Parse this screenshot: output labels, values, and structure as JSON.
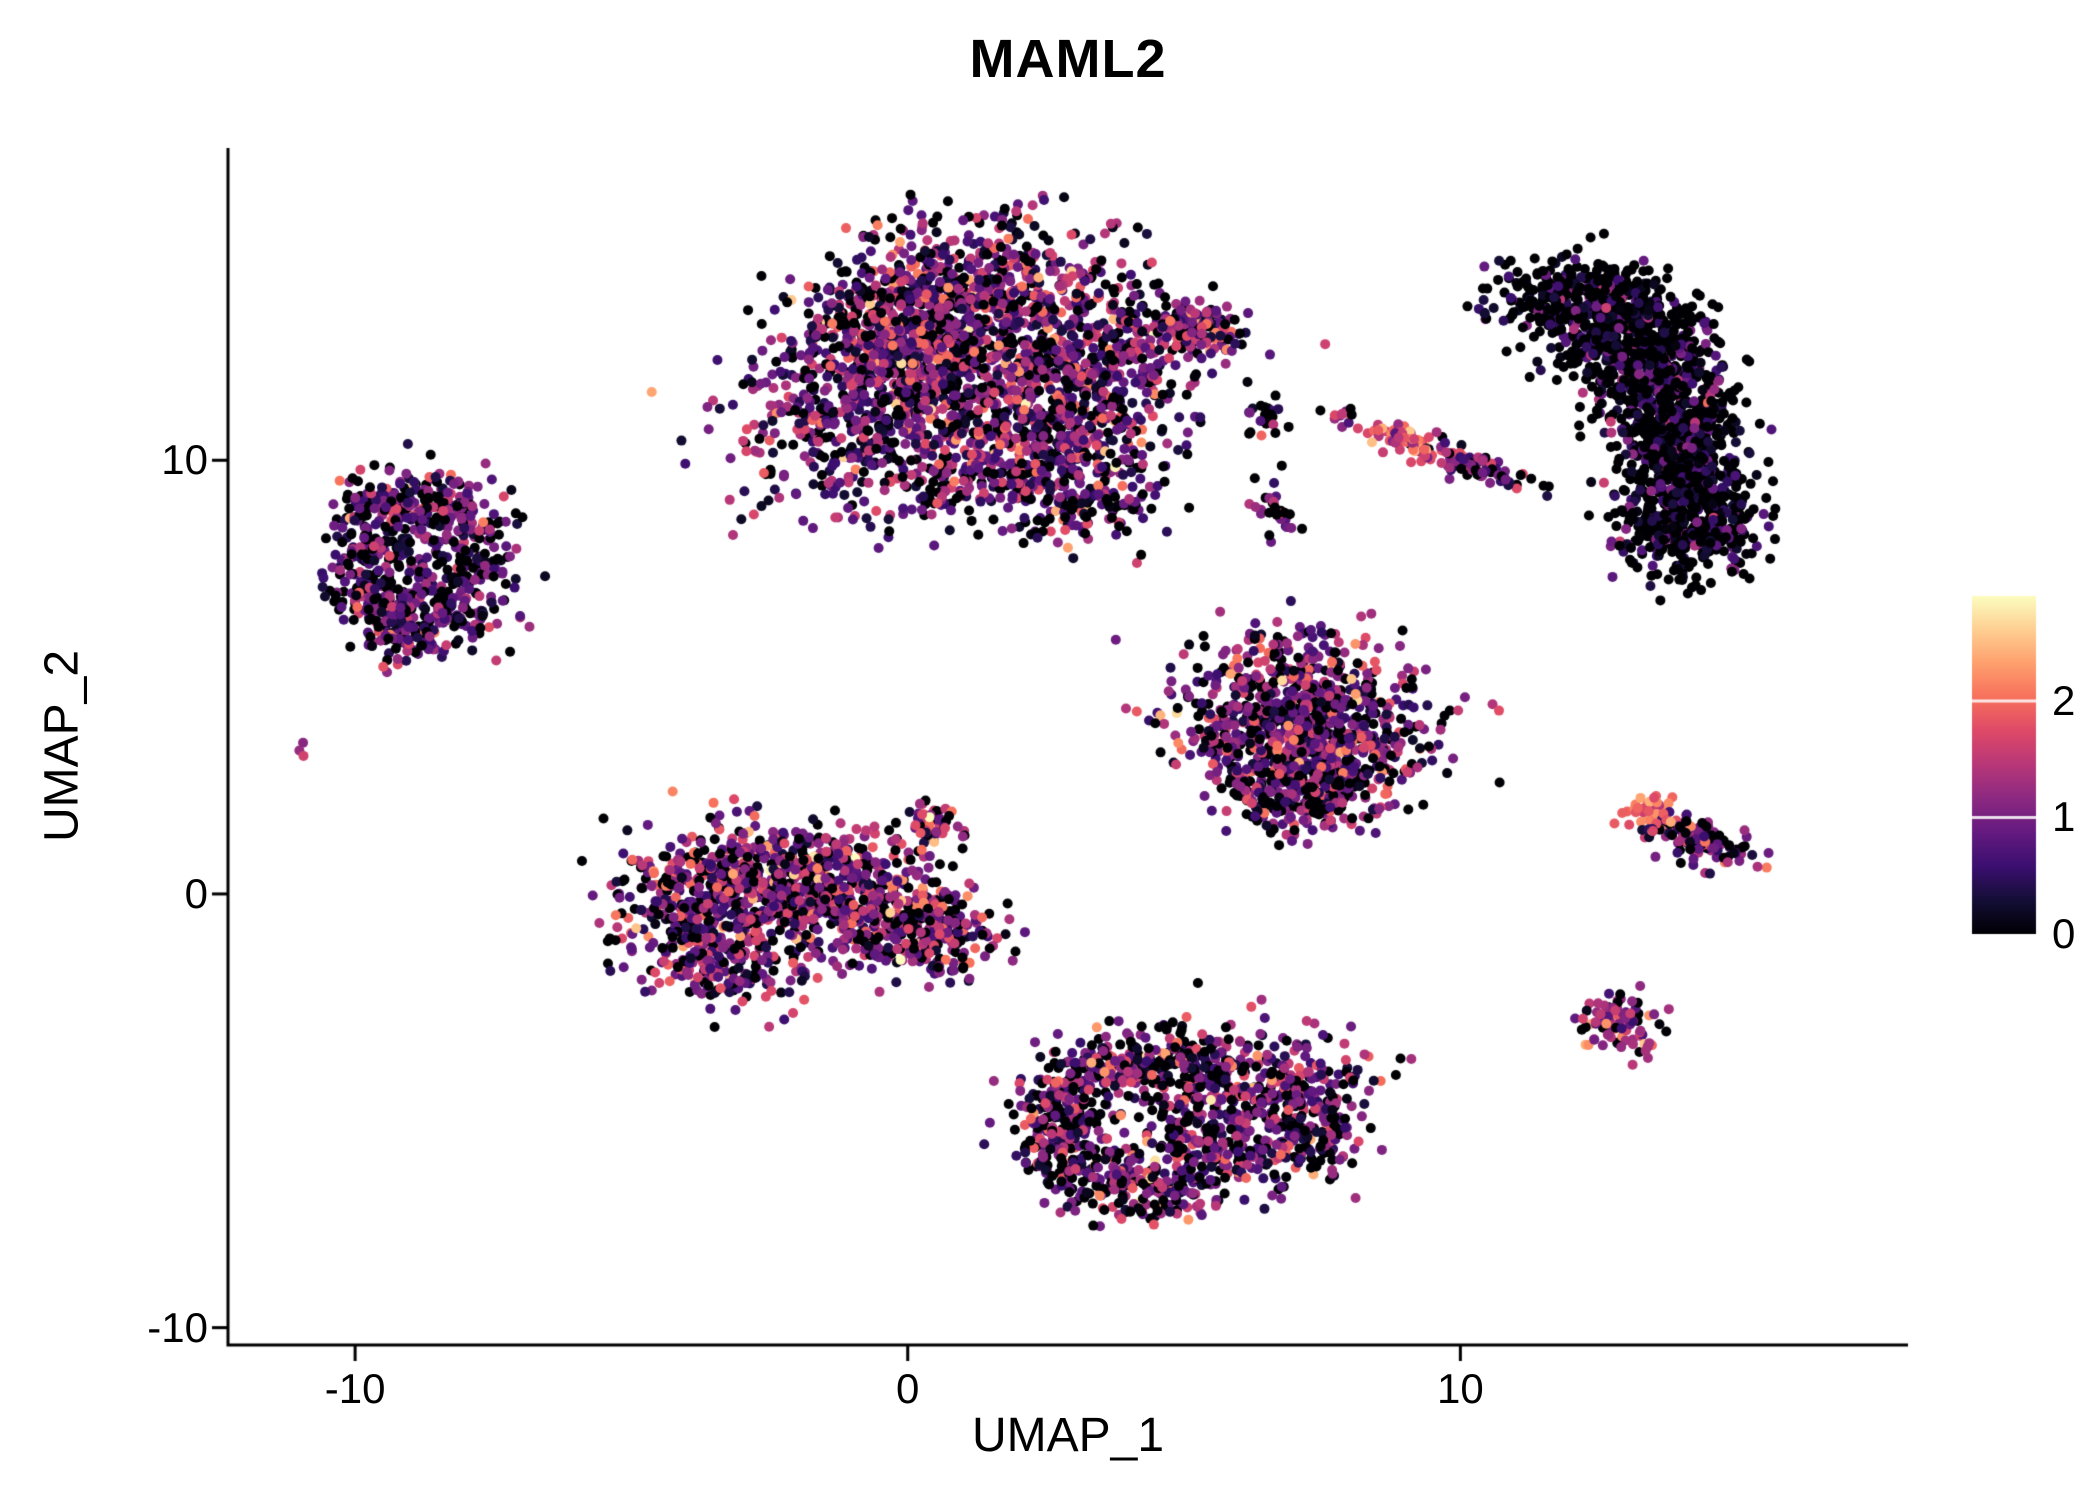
{
  "page": {
    "background": "#ffffff"
  },
  "chart_data": {
    "type": "scatter",
    "title": "MAML2",
    "xlabel": "UMAP_1",
    "ylabel": "UMAP_2",
    "xlim": [
      -12.3,
      18.1
    ],
    "ylim": [
      -10.4,
      17.2
    ],
    "x_ticks": [
      -10,
      0,
      10
    ],
    "y_ticks": [
      -10,
      0,
      10
    ],
    "grid": false,
    "background": "#ffffff",
    "axis_color": "#000000",
    "point_radius_px": 5,
    "seed": 42,
    "color_scale": {
      "name": "magma",
      "min": 0,
      "max": 2.9,
      "legend_position": "right",
      "legend_ticks": [
        0,
        1,
        2
      ],
      "anchors": [
        {
          "t": 0.0,
          "color": "#000004"
        },
        {
          "t": 0.1,
          "color": "#140e36"
        },
        {
          "t": 0.2,
          "color": "#3b0f70"
        },
        {
          "t": 0.3,
          "color": "#641a80"
        },
        {
          "t": 0.4,
          "color": "#8c2981"
        },
        {
          "t": 0.5,
          "color": "#b73779"
        },
        {
          "t": 0.6,
          "color": "#de4968"
        },
        {
          "t": 0.7,
          "color": "#f7705c"
        },
        {
          "t": 0.8,
          "color": "#fe9f6d"
        },
        {
          "t": 0.9,
          "color": "#fecf92"
        },
        {
          "t": 1.0,
          "color": "#fcfdbf"
        }
      ]
    },
    "clusters": [
      {
        "name": "top-center-large",
        "n": 2800,
        "expression": {
          "p_zero": 0.22,
          "mean": 1.0,
          "sd": 0.65
        },
        "blobs": [
          {
            "x": 0.9,
            "y": 12.0,
            "sx": 1.5,
            "sy": 1.4,
            "w": 0.28
          },
          {
            "x": -1.0,
            "y": 11.2,
            "sx": 1.0,
            "sy": 1.2,
            "w": 0.13
          },
          {
            "x": 1.6,
            "y": 14.0,
            "sx": 1.3,
            "sy": 0.85,
            "w": 0.15
          },
          {
            "x": 0.0,
            "y": 13.0,
            "sx": 0.8,
            "sy": 0.8,
            "w": 0.1
          },
          {
            "x": 2.8,
            "y": 10.6,
            "sx": 1.1,
            "sy": 0.9,
            "w": 0.12
          },
          {
            "x": 3.6,
            "y": 12.3,
            "sx": 0.8,
            "sy": 0.8,
            "w": 0.09
          },
          {
            "x": 5.2,
            "y": 13.0,
            "sx": 0.55,
            "sy": 0.28,
            "w": 0.05,
            "rot": -15
          },
          {
            "x": 3.2,
            "y": 8.9,
            "sx": 0.7,
            "sy": 0.5,
            "w": 0.04
          },
          {
            "x": 1.0,
            "y": 9.6,
            "sx": 0.8,
            "sy": 0.5,
            "w": 0.04
          }
        ]
      },
      {
        "name": "left-ring",
        "n": 780,
        "expression": {
          "p_zero": 0.32,
          "mean": 0.9,
          "sd": 0.55
        },
        "blobs": [
          {
            "x": -9.7,
            "y": 8.4,
            "sx": 0.45,
            "sy": 0.5,
            "w": 0.14
          },
          {
            "x": -8.2,
            "y": 8.6,
            "sx": 0.5,
            "sy": 0.45,
            "w": 0.14
          },
          {
            "x": -9.8,
            "y": 7.2,
            "sx": 0.4,
            "sy": 0.45,
            "w": 0.12
          },
          {
            "x": -8.0,
            "y": 7.4,
            "sx": 0.45,
            "sy": 0.5,
            "w": 0.13
          },
          {
            "x": -8.9,
            "y": 9.1,
            "sx": 0.55,
            "sy": 0.38,
            "w": 0.14
          },
          {
            "x": -8.8,
            "y": 6.4,
            "sx": 0.55,
            "sy": 0.45,
            "w": 0.14
          },
          {
            "x": -9.4,
            "y": 6.7,
            "sx": 0.4,
            "sy": 0.4,
            "w": 0.09
          },
          {
            "x": -9.2,
            "y": 5.9,
            "sx": 0.4,
            "sy": 0.33,
            "w": 0.06
          },
          {
            "x": -8.1,
            "y": 6.6,
            "sx": 0.4,
            "sy": 0.4,
            "w": 0.04
          }
        ]
      },
      {
        "name": "isolated-dot-left",
        "n": 3,
        "expression": {
          "p_zero": 0.0,
          "mean": 1.3,
          "sd": 0.3
        },
        "blobs": [
          {
            "x": -10.9,
            "y": 3.4,
            "sx": 0.08,
            "sy": 0.08,
            "w": 1
          }
        ]
      },
      {
        "name": "right-crescent-dark",
        "n": 1900,
        "expression": {
          "p_zero": 0.62,
          "mean": 0.5,
          "sd": 0.5
        },
        "blobs": [
          {
            "x": 12.0,
            "y": 13.8,
            "sx": 0.75,
            "sy": 0.45,
            "w": 0.14
          },
          {
            "x": 12.9,
            "y": 13.0,
            "sx": 0.7,
            "sy": 0.6,
            "w": 0.18
          },
          {
            "x": 13.6,
            "y": 12.0,
            "sx": 0.6,
            "sy": 0.8,
            "w": 0.18
          },
          {
            "x": 13.9,
            "y": 10.7,
            "sx": 0.55,
            "sy": 0.8,
            "w": 0.18
          },
          {
            "x": 14.0,
            "y": 9.4,
            "sx": 0.6,
            "sy": 0.8,
            "w": 0.17
          },
          {
            "x": 14.1,
            "y": 8.3,
            "sx": 0.6,
            "sy": 0.55,
            "w": 0.15
          }
        ]
      },
      {
        "name": "small-pair-dark-mid",
        "n": 22,
        "expression": {
          "p_zero": 0.5,
          "mean": 0.7,
          "sd": 0.5
        },
        "blobs": [
          {
            "x": 6.5,
            "y": 11.0,
            "sx": 0.22,
            "sy": 0.22,
            "w": 1
          }
        ]
      },
      {
        "name": "tiny-colored-pair-mid",
        "n": 12,
        "expression": {
          "p_zero": 0.2,
          "mean": 1.3,
          "sd": 0.4
        },
        "blobs": [
          {
            "x": 7.8,
            "y": 11.05,
            "sx": 0.15,
            "sy": 0.12,
            "w": 1
          }
        ]
      },
      {
        "name": "mid-streak-bright-tip",
        "n": 60,
        "expression": {
          "p_zero": 0.05,
          "mean": 1.8,
          "sd": 0.4
        },
        "blobs": [
          {
            "x": 9.0,
            "y": 10.45,
            "sx": 0.35,
            "sy": 0.16,
            "w": 1,
            "rot": -20
          }
        ]
      },
      {
        "name": "mid-streak-tail",
        "n": 85,
        "expression": {
          "p_zero": 0.25,
          "mean": 0.9,
          "sd": 0.5
        },
        "blobs": [
          {
            "x": 10.3,
            "y": 9.85,
            "sx": 0.55,
            "sy": 0.15,
            "w": 1,
            "rot": -24
          }
        ]
      },
      {
        "name": "small-clump-below-streak",
        "n": 30,
        "expression": {
          "p_zero": 0.45,
          "mean": 0.8,
          "sd": 0.5
        },
        "blobs": [
          {
            "x": 6.6,
            "y": 8.9,
            "sx": 0.3,
            "sy": 0.3,
            "w": 1
          }
        ]
      },
      {
        "name": "middle-right-triangle",
        "n": 1150,
        "expression": {
          "p_zero": 0.28,
          "mean": 1.0,
          "sd": 0.6
        },
        "blobs": [
          {
            "x": 7.1,
            "y": 4.8,
            "sx": 1.0,
            "sy": 0.7,
            "w": 0.3
          },
          {
            "x": 6.4,
            "y": 3.6,
            "sx": 0.8,
            "sy": 0.7,
            "w": 0.25
          },
          {
            "x": 7.9,
            "y": 3.5,
            "sx": 0.8,
            "sy": 0.65,
            "w": 0.25
          },
          {
            "x": 7.2,
            "y": 2.4,
            "sx": 0.7,
            "sy": 0.45,
            "w": 0.2
          }
        ]
      },
      {
        "name": "center-left-blob",
        "n": 1450,
        "expression": {
          "p_zero": 0.25,
          "mean": 1.15,
          "sd": 0.6
        },
        "blobs": [
          {
            "x": -3.9,
            "y": -0.1,
            "sx": 0.75,
            "sy": 0.8,
            "w": 0.2
          },
          {
            "x": -2.6,
            "y": 0.3,
            "sx": 0.8,
            "sy": 0.75,
            "w": 0.22
          },
          {
            "x": -1.3,
            "y": 0.0,
            "sx": 0.8,
            "sy": 0.7,
            "w": 0.2
          },
          {
            "x": -0.1,
            "y": -0.6,
            "sx": 0.7,
            "sy": 0.6,
            "w": 0.15
          },
          {
            "x": -3.3,
            "y": -1.5,
            "sx": 0.8,
            "sy": 0.5,
            "w": 0.13
          },
          {
            "x": 0.8,
            "y": -1.0,
            "sx": 0.45,
            "sy": 0.45,
            "w": 0.06
          },
          {
            "x": 0.3,
            "y": 1.4,
            "sx": 0.3,
            "sy": 0.35,
            "w": 0.04
          }
        ]
      },
      {
        "name": "bottom-center-blob",
        "n": 1300,
        "expression": {
          "p_zero": 0.3,
          "mean": 1.0,
          "sd": 0.6
        },
        "blobs": [
          {
            "x": 2.9,
            "y": -4.6,
            "sx": 0.45,
            "sy": 0.5,
            "w": 0.1
          },
          {
            "x": 3.9,
            "y": -3.9,
            "sx": 0.5,
            "sy": 0.4,
            "w": 0.1
          },
          {
            "x": 2.6,
            "y": -5.7,
            "sx": 0.4,
            "sy": 0.5,
            "w": 0.09
          },
          {
            "x": 3.5,
            "y": -6.6,
            "sx": 0.5,
            "sy": 0.4,
            "w": 0.09
          },
          {
            "x": 4.6,
            "y": -6.9,
            "sx": 0.5,
            "sy": 0.35,
            "w": 0.08
          },
          {
            "x": 6.3,
            "y": -4.6,
            "sx": 1.0,
            "sy": 0.75,
            "w": 0.26
          },
          {
            "x": 5.5,
            "y": -5.8,
            "sx": 0.8,
            "sy": 0.6,
            "w": 0.12
          },
          {
            "x": 7.3,
            "y": -5.6,
            "sx": 0.6,
            "sy": 0.5,
            "w": 0.08
          },
          {
            "x": 5.0,
            "y": -3.9,
            "sx": 0.6,
            "sy": 0.45,
            "w": 0.08
          }
        ]
      },
      {
        "name": "right-streak-bright-tip",
        "n": 40,
        "expression": {
          "p_zero": 0.05,
          "mean": 2.0,
          "sd": 0.35
        },
        "blobs": [
          {
            "x": 13.5,
            "y": 1.85,
            "sx": 0.25,
            "sy": 0.2,
            "w": 1
          }
        ]
      },
      {
        "name": "right-streak-tail",
        "n": 120,
        "expression": {
          "p_zero": 0.25,
          "mean": 1.0,
          "sd": 0.55
        },
        "blobs": [
          {
            "x": 14.4,
            "y": 1.2,
            "sx": 0.5,
            "sy": 0.25,
            "w": 1,
            "rot": -25
          }
        ]
      },
      {
        "name": "small-round-bottom-right",
        "n": 85,
        "expression": {
          "p_zero": 0.12,
          "mean": 1.3,
          "sd": 0.5
        },
        "blobs": [
          {
            "x": 12.9,
            "y": -3.0,
            "sx": 0.35,
            "sy": 0.35,
            "w": 1
          }
        ]
      }
    ]
  }
}
